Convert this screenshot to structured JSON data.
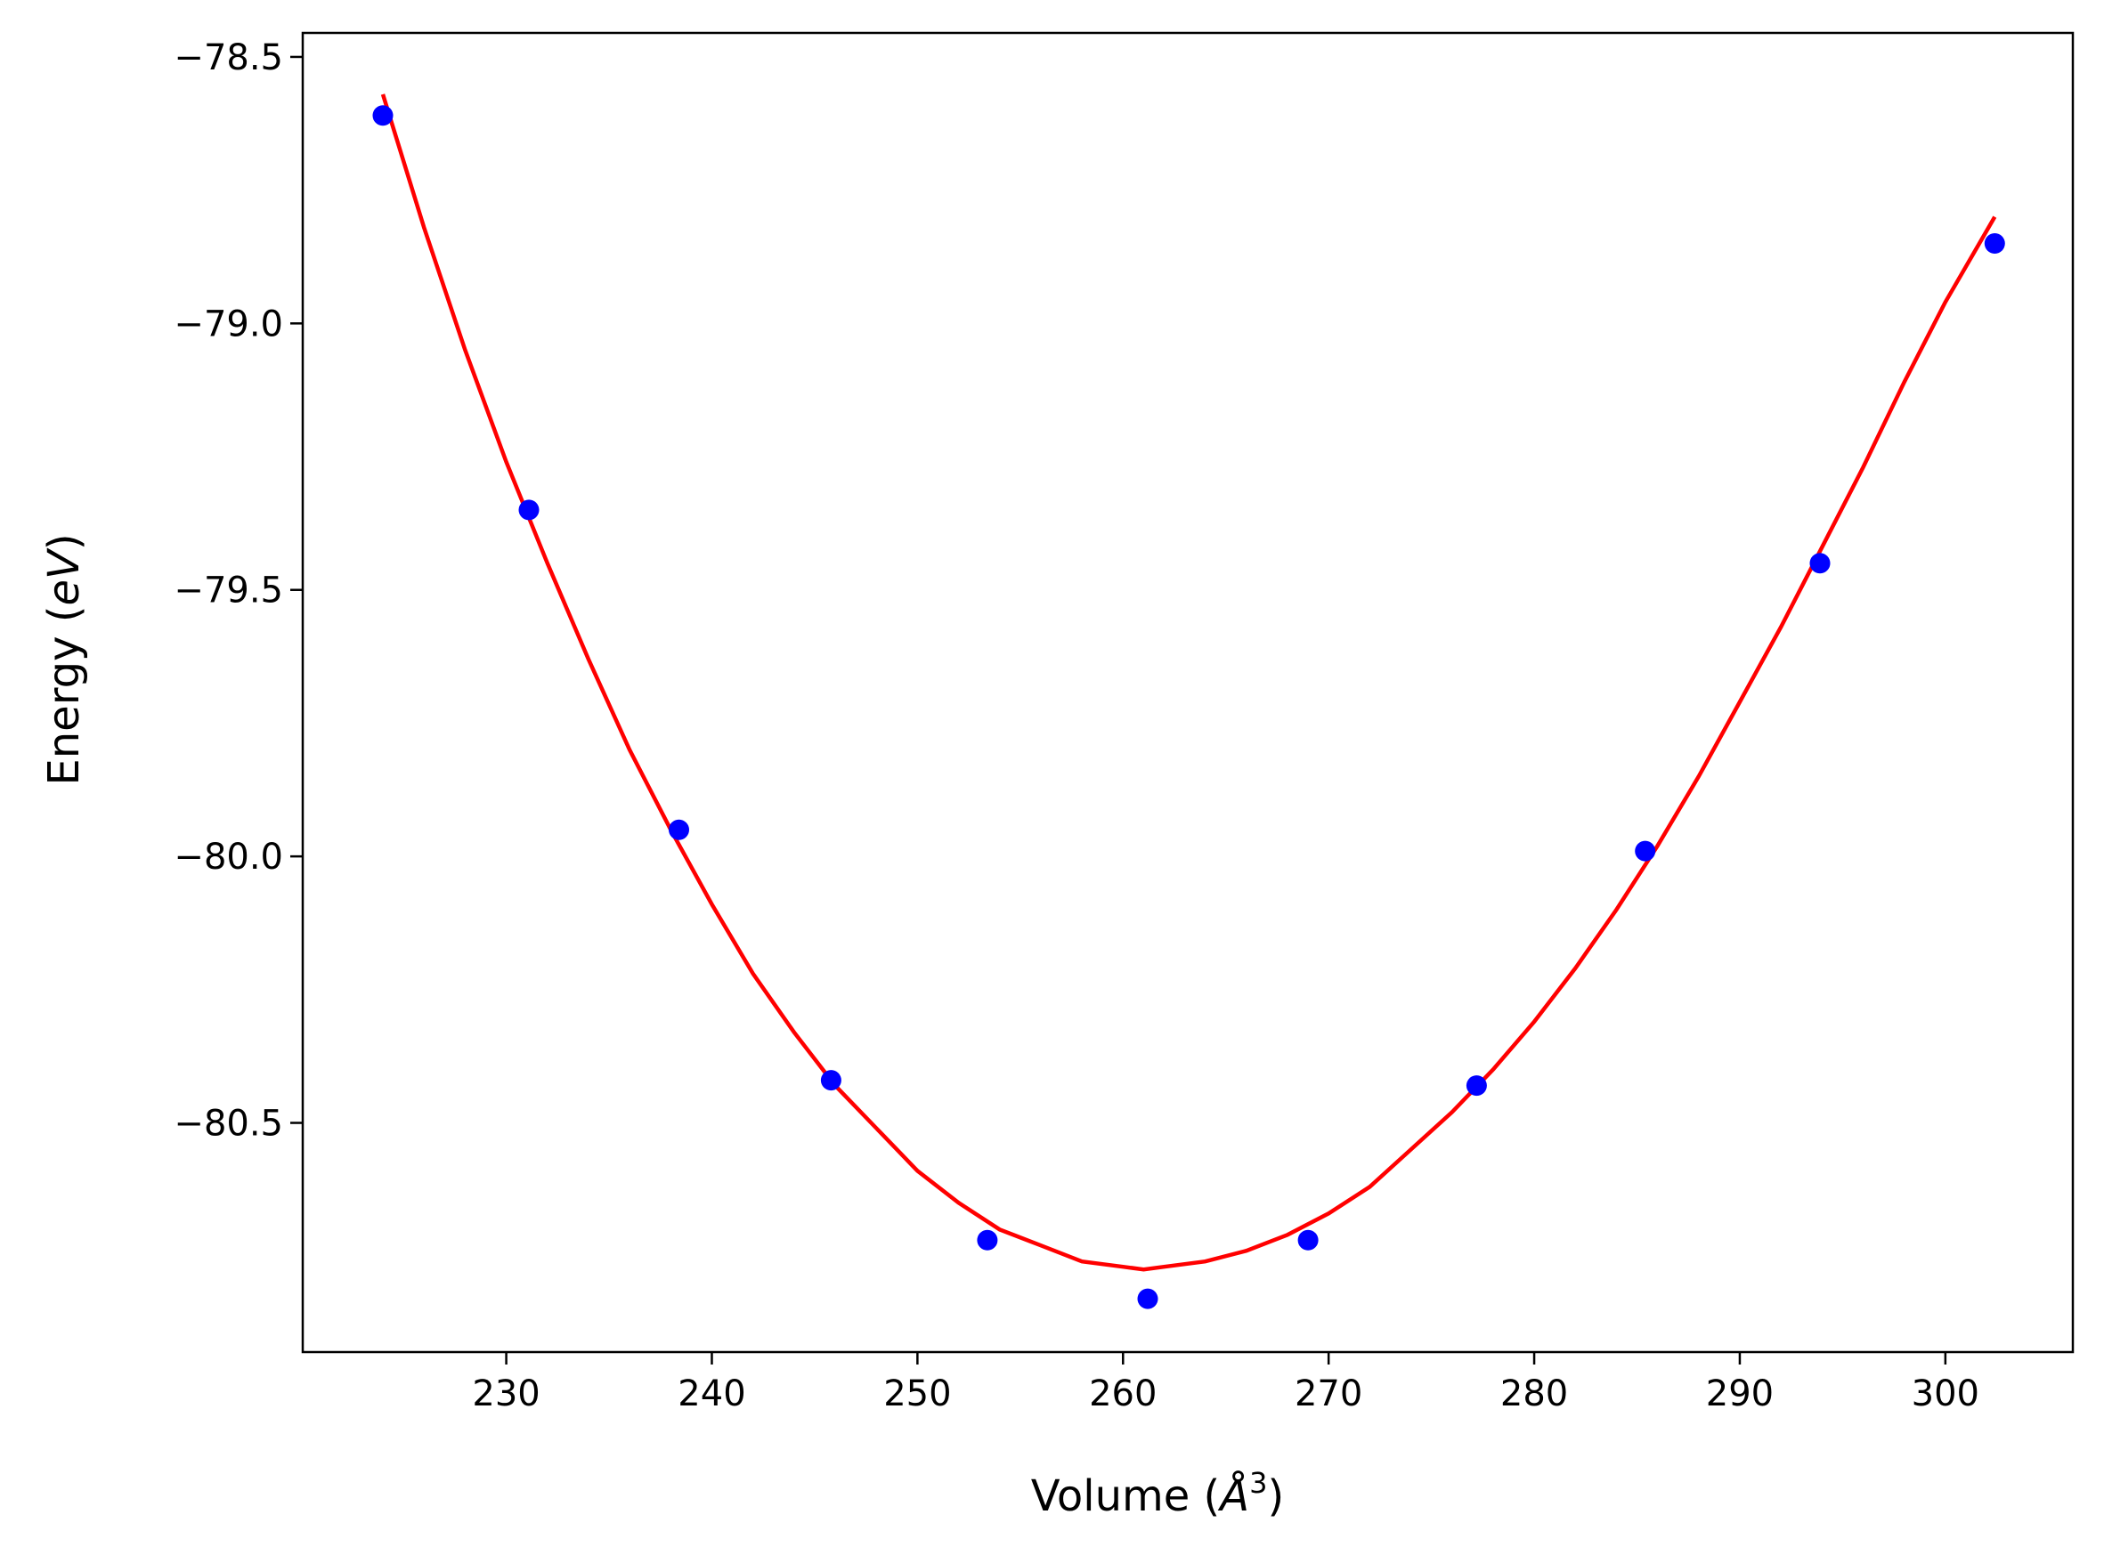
{
  "chart_data": {
    "type": "scatter",
    "title": "",
    "xlabel": "Volume (",
    "xlabel_symbol": "Å",
    "xlabel_sup": "3",
    "xlabel_end": ")",
    "ylabel": "Energy (",
    "ylabel_italic": "eV",
    "ylabel_end": ")",
    "xlim": [
      220.1,
      306.2
    ],
    "ylim": [
      -80.93,
      -78.455
    ],
    "x_ticks": [
      230,
      240,
      250,
      260,
      270,
      280,
      290,
      300
    ],
    "x_tick_labels": [
      "230",
      "240",
      "250",
      "260",
      "270",
      "280",
      "290",
      "300"
    ],
    "y_ticks": [
      -78.5,
      -79.0,
      -79.5,
      -80.0,
      -80.5
    ],
    "y_tick_labels": [
      "−78.5",
      "−79.0",
      "−79.5",
      "−80.0",
      "−80.5"
    ],
    "grid": false,
    "legend": "none",
    "series": [
      {
        "kind": "points",
        "color": "#0000ff",
        "x": [
          224.0,
          231.1,
          238.4,
          245.8,
          253.4,
          261.2,
          269.0,
          277.2,
          285.4,
          293.9,
          302.4
        ],
        "y": [
          -78.61,
          -79.35,
          -79.95,
          -80.42,
          -80.72,
          -80.83,
          -80.72,
          -80.43,
          -79.99,
          -79.45,
          -78.85
        ]
      },
      {
        "kind": "fit-curve",
        "color": "#ff0000",
        "x": [
          224.0,
          226.0,
          228.0,
          230.0,
          232.0,
          234.0,
          236.0,
          238.0,
          240.0,
          242.0,
          244.0,
          246.0,
          248.0,
          250.0,
          252.0,
          254.0,
          256.0,
          258.0,
          260.0,
          261.0,
          262.0,
          264.0,
          266.0,
          268.0,
          270.0,
          272.0,
          274.0,
          276.0,
          278.0,
          280.0,
          282.0,
          284.0,
          286.0,
          288.0,
          290.0,
          292.0,
          294.0,
          296.0,
          298.0,
          300.0,
          302.4
        ],
        "y": [
          -78.57,
          -78.82,
          -79.05,
          -79.26,
          -79.45,
          -79.63,
          -79.8,
          -79.95,
          -80.09,
          -80.22,
          -80.33,
          -80.43,
          -80.51,
          -80.59,
          -80.65,
          -80.7,
          -80.73,
          -80.76,
          -80.77,
          -80.775,
          -80.77,
          -80.76,
          -80.74,
          -80.71,
          -80.67,
          -80.62,
          -80.55,
          -80.48,
          -80.4,
          -80.31,
          -80.21,
          -80.1,
          -79.98,
          -79.85,
          -79.71,
          -79.57,
          -79.42,
          -79.27,
          -79.11,
          -78.96,
          -78.8
        ]
      }
    ]
  }
}
